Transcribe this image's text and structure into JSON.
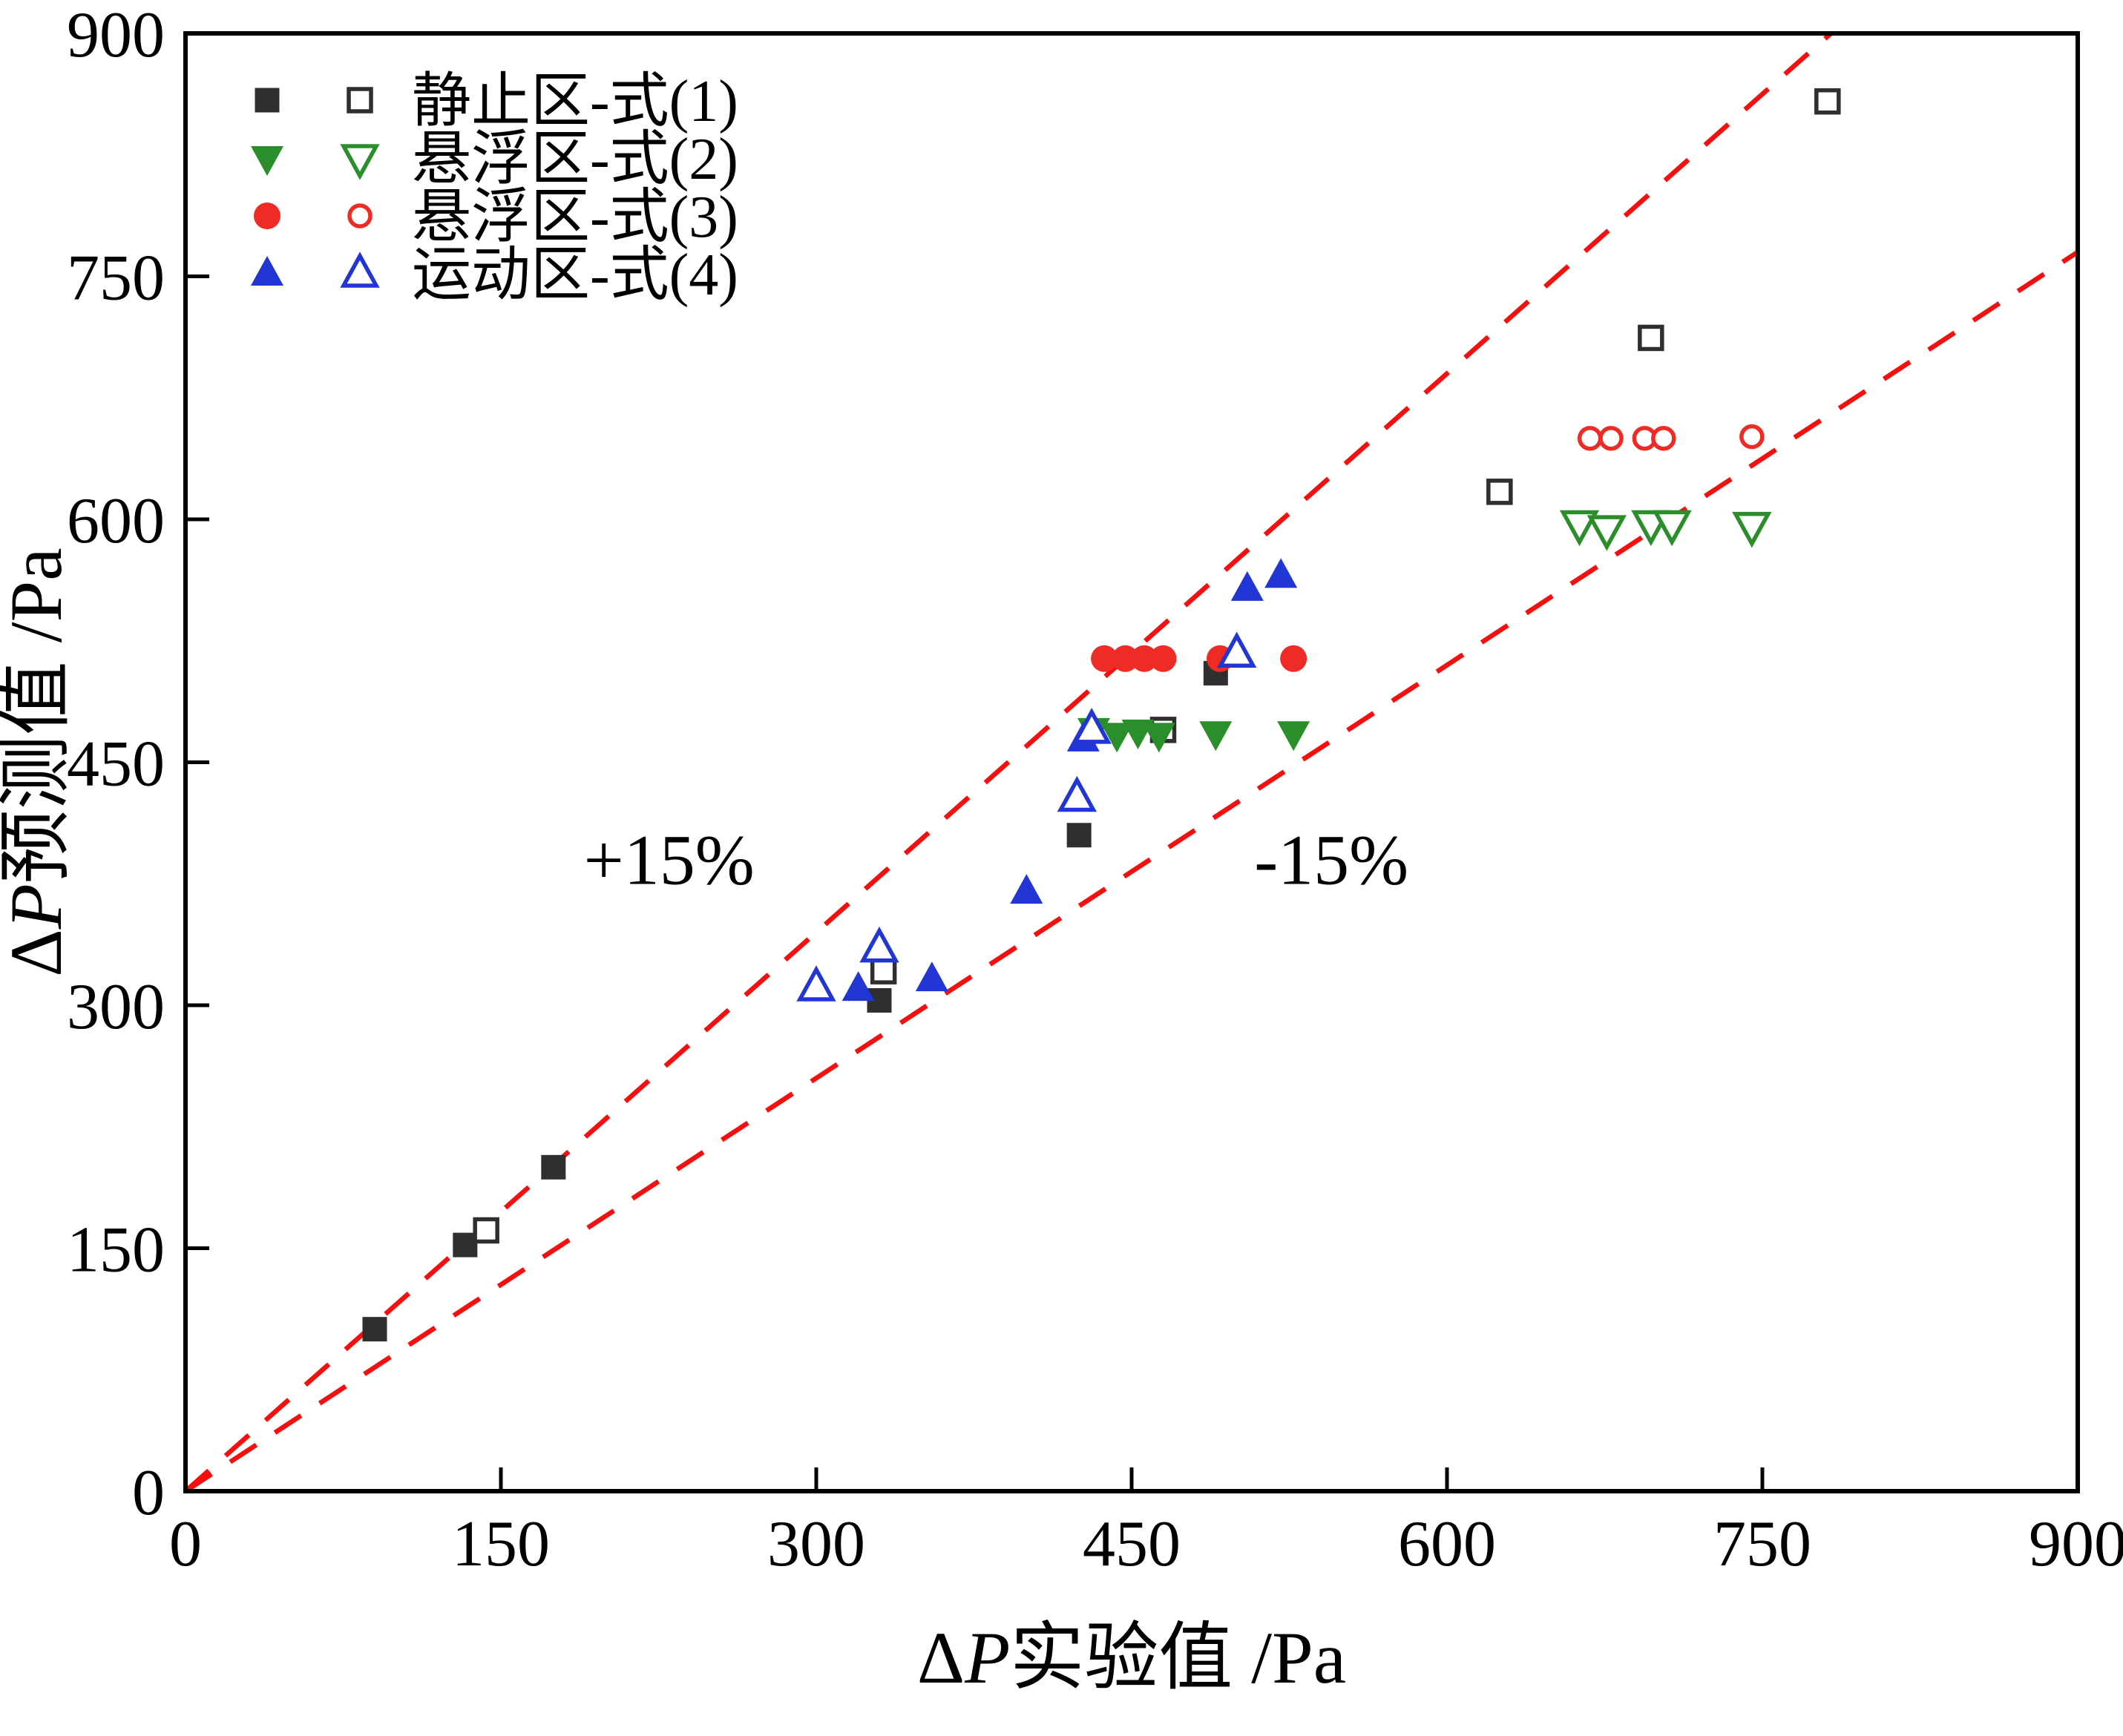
{
  "chart_data": {
    "type": "scatter",
    "title": "",
    "xlabel": {
      "prefix": "Δ",
      "italic": "P",
      "rest": "实验值 /Pa"
    },
    "ylabel": {
      "prefix": "Δ",
      "italic": "P",
      "rest": "预测值 /Pa"
    },
    "xlim": [
      0,
      900
    ],
    "ylim": [
      0,
      900
    ],
    "xticks": [
      0,
      150,
      300,
      450,
      600,
      750,
      900
    ],
    "yticks": [
      0,
      150,
      300,
      450,
      600,
      750,
      900
    ],
    "grid": false,
    "legend_position": "upper-left",
    "frame_color": "#000000",
    "reference_lines": [
      {
        "label": "+15%",
        "slope": 1.15,
        "color": "#f50f0f",
        "style": "dashed"
      },
      {
        "label": "-15%",
        "slope": 0.85,
        "color": "#f50f0f",
        "style": "dashed"
      }
    ],
    "annotations": [
      {
        "text": "+15%",
        "x": 230,
        "y": 375
      },
      {
        "text": "-15%",
        "x": 545,
        "y": 375
      }
    ],
    "series": [
      {
        "name": "静止区-式(1)",
        "marker": "square",
        "color": "#2f2f2f",
        "filled_points": [
          [
            90,
            100
          ],
          [
            133,
            152
          ],
          [
            175,
            200
          ],
          [
            330,
            303
          ],
          [
            425,
            405
          ],
          [
            490,
            505
          ]
        ],
        "open_points": [
          [
            143,
            161
          ],
          [
            332,
            321
          ],
          [
            465,
            470
          ],
          [
            625,
            617
          ],
          [
            697,
            712
          ],
          [
            781,
            858
          ]
        ]
      },
      {
        "name": "悬浮区-式(2)",
        "marker": "triangle-down",
        "color": "#2a8f2a",
        "filled_points": [
          [
            432,
            470
          ],
          [
            443,
            467
          ],
          [
            453,
            469
          ],
          [
            463,
            467
          ],
          [
            490,
            468
          ],
          [
            527,
            468
          ]
        ],
        "open_points": [
          [
            663,
            597
          ],
          [
            676,
            594
          ],
          [
            697,
            597
          ],
          [
            707,
            597
          ],
          [
            745,
            596
          ]
        ]
      },
      {
        "name": "悬浮区-式(3)",
        "marker": "circle",
        "color": "#ee2b24",
        "filled_points": [
          [
            437,
            514
          ],
          [
            447,
            514
          ],
          [
            456,
            514
          ],
          [
            465,
            514
          ],
          [
            492,
            514
          ],
          [
            527,
            514
          ]
        ],
        "open_points": [
          [
            668,
            650
          ],
          [
            678,
            650
          ],
          [
            694,
            650
          ],
          [
            703,
            650
          ],
          [
            745,
            651
          ]
        ]
      },
      {
        "name": "运动区-式(4)",
        "marker": "triangle-up",
        "color": "#2136d4",
        "filled_points": [
          [
            320,
            310
          ],
          [
            355,
            316
          ],
          [
            400,
            370
          ],
          [
            427,
            464
          ],
          [
            505,
            557
          ],
          [
            521,
            565
          ]
        ],
        "open_points": [
          [
            300,
            311
          ],
          [
            330,
            335
          ],
          [
            424,
            428
          ],
          [
            431,
            470
          ],
          [
            500,
            517
          ]
        ]
      }
    ]
  }
}
